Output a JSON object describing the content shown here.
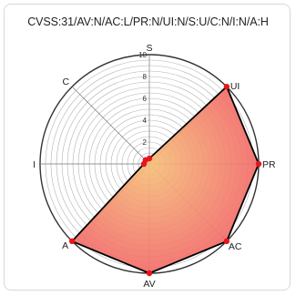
{
  "chart_data": {
    "type": "radar",
    "title": "CVSS:31/AV:N/AC:L/PR:N/UI:N/S:U/C:N/I:N/A:H",
    "axes": [
      "S",
      "UI",
      "PR",
      "AC",
      "AV",
      "A",
      "I",
      "C"
    ],
    "values": [
      0.5,
      10,
      10,
      10,
      10,
      10,
      0.5,
      0.5
    ],
    "rlim": [
      0,
      10
    ],
    "ticks": [
      2,
      4,
      6,
      8,
      10
    ],
    "tick_labels": [
      "2",
      "4",
      "6",
      "8",
      "10"
    ],
    "grid": true,
    "colors": {
      "fill_outer": "#f26a6a",
      "fill_inner": "#f6c07a",
      "outline": "#000000",
      "point": "#e8141c",
      "grid": "#999999",
      "outer_ring": "#333333"
    }
  }
}
